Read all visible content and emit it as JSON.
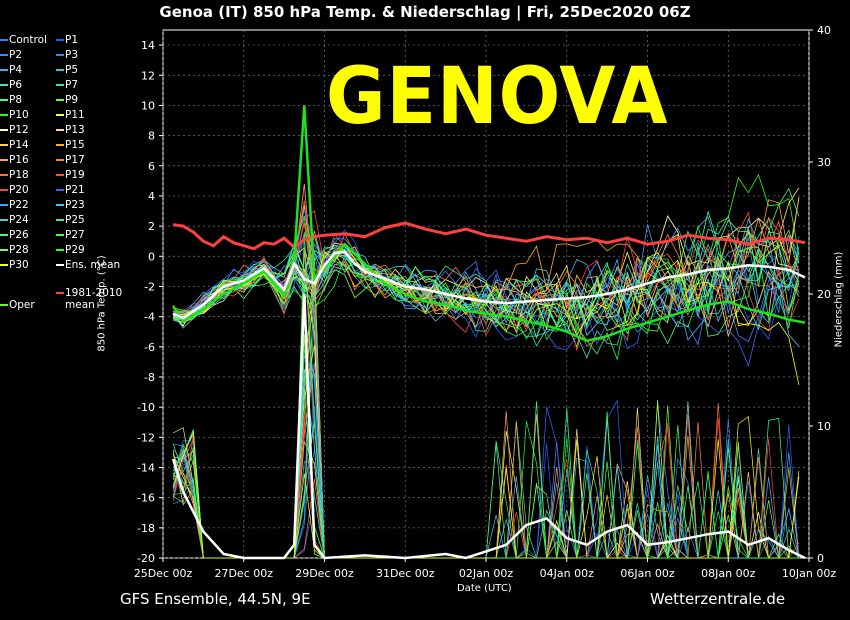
{
  "title": "Genoa  (IT)  850 hPa Temp. & Niederschlag | Fri, 25Dec2020 06Z",
  "overlay_label": "GENOVA",
  "footer_left": "GFS Ensemble, 44.5N, 9E",
  "footer_right": "Wetterzentrale.de",
  "legend": [
    {
      "label": "Control",
      "color": "#3f7fff"
    },
    {
      "label": "P1",
      "color": "#2060ff"
    },
    {
      "label": "P2",
      "color": "#2f8fff"
    },
    {
      "label": "P3",
      "color": "#4080ff"
    },
    {
      "label": "P4",
      "color": "#40b0ff"
    },
    {
      "label": "P5",
      "color": "#40c0e0"
    },
    {
      "label": "P6",
      "color": "#40e0c0"
    },
    {
      "label": "P7",
      "color": "#40e0a0"
    },
    {
      "label": "P8",
      "color": "#40ff80"
    },
    {
      "label": "P9",
      "color": "#60ff40"
    },
    {
      "label": "P10",
      "color": "#20ff20"
    },
    {
      "label": "P11",
      "color": "#ffff40"
    },
    {
      "label": "P12",
      "color": "#ffffa0"
    },
    {
      "label": "P13",
      "color": "#ffe080"
    },
    {
      "label": "P14",
      "color": "#ffd040"
    },
    {
      "label": "P15",
      "color": "#ffb020"
    },
    {
      "label": "P16",
      "color": "#ffa060"
    },
    {
      "label": "P17",
      "color": "#ff8040"
    },
    {
      "label": "P18",
      "color": "#ff7040"
    },
    {
      "label": "P19",
      "color": "#ff5030"
    },
    {
      "label": "P20",
      "color": "#ff4040"
    },
    {
      "label": "P21",
      "color": "#4060ff"
    },
    {
      "label": "P22",
      "color": "#40a0ff"
    },
    {
      "label": "P23",
      "color": "#40c0ff"
    },
    {
      "label": "P24",
      "color": "#40d0e0"
    },
    {
      "label": "P25",
      "color": "#40e0b0"
    },
    {
      "label": "P26",
      "color": "#40ff90"
    },
    {
      "label": "P27",
      "color": "#40ff60"
    },
    {
      "label": "P28",
      "color": "#80ff40"
    },
    {
      "label": "P29",
      "color": "#20ff40"
    },
    {
      "label": "P30",
      "color": "#ffff00"
    },
    {
      "label": "Ens. mean",
      "color": "#ffffff"
    },
    {
      "label": "Oper",
      "color": "#60ff20"
    },
    {
      "label": "1981-2010 mean",
      "color": "#ff4040"
    }
  ],
  "chart_data": {
    "type": "line",
    "xlabel": "Date (UTC)",
    "ylabel": "850 hPa Temp. (°C)",
    "y2label": "Niederschlag (mm)",
    "ylim": [
      -20,
      15
    ],
    "y2lim": [
      0,
      40
    ],
    "yticks": [
      -20,
      -18,
      -16,
      -14,
      -12,
      -10,
      -8,
      -6,
      -4,
      -2,
      0,
      2,
      4,
      6,
      8,
      10,
      12,
      14
    ],
    "y2ticks": [
      0,
      10,
      20,
      30,
      40
    ],
    "xticks": [
      "25Dec 00z",
      "27Dec 00z",
      "29Dec 00z",
      "31Dec 00z",
      "02Jan 00z",
      "04Jan 00z",
      "06Jan 00z",
      "08Jan 00z",
      "10Jan 00z"
    ],
    "x_days": [
      0,
      16
    ],
    "ens_mean_temp": [
      [
        0.25,
        -3.8
      ],
      [
        0.5,
        -4.1
      ],
      [
        1,
        -3.2
      ],
      [
        1.5,
        -2
      ],
      [
        2,
        -1.6
      ],
      [
        2.5,
        -0.8
      ],
      [
        3,
        -2.2
      ],
      [
        3.25,
        -0.5
      ],
      [
        3.5,
        -1.5
      ],
      [
        3.75,
        -1.8
      ],
      [
        4,
        -0.6
      ],
      [
        4.25,
        0.2
      ],
      [
        4.5,
        0.3
      ],
      [
        4.75,
        -0.5
      ],
      [
        5,
        -1
      ],
      [
        5.5,
        -1.5
      ],
      [
        6,
        -2
      ],
      [
        6.5,
        -2.2
      ],
      [
        7,
        -2.5
      ],
      [
        7.5,
        -2.8
      ],
      [
        8,
        -3
      ],
      [
        8.5,
        -3.1
      ],
      [
        9,
        -3
      ],
      [
        9.5,
        -2.9
      ],
      [
        10,
        -2.8
      ],
      [
        10.5,
        -2.7
      ],
      [
        11,
        -2.5
      ],
      [
        11.5,
        -2.2
      ],
      [
        12,
        -1.8
      ],
      [
        12.5,
        -1.4
      ],
      [
        13,
        -1.2
      ],
      [
        13.5,
        -0.9
      ],
      [
        14,
        -0.8
      ],
      [
        14.5,
        -0.6
      ],
      [
        15,
        -0.7
      ],
      [
        15.5,
        -0.9
      ],
      [
        15.9,
        -1.4
      ]
    ],
    "clim_mean_temp": [
      [
        0.25,
        2.1
      ],
      [
        0.5,
        2
      ],
      [
        0.75,
        1.6
      ],
      [
        1,
        1
      ],
      [
        1.25,
        0.7
      ],
      [
        1.5,
        1.3
      ],
      [
        1.75,
        0.9
      ],
      [
        2,
        0.7
      ],
      [
        2.25,
        0.5
      ],
      [
        2.5,
        0.9
      ],
      [
        2.75,
        0.8
      ],
      [
        3,
        1.2
      ],
      [
        3.25,
        0.6
      ],
      [
        3.5,
        1.1
      ],
      [
        3.75,
        1.3
      ],
      [
        4,
        1.4
      ],
      [
        4.5,
        1.5
      ],
      [
        5,
        1.3
      ],
      [
        5.5,
        1.9
      ],
      [
        6,
        2.2
      ],
      [
        6.5,
        1.8
      ],
      [
        7,
        1.5
      ],
      [
        7.5,
        1.8
      ],
      [
        8,
        1.4
      ],
      [
        8.5,
        1.2
      ],
      [
        9,
        1
      ],
      [
        9.5,
        1.3
      ],
      [
        10,
        1.1
      ],
      [
        10.5,
        1.2
      ],
      [
        11,
        0.9
      ],
      [
        11.5,
        1.2
      ],
      [
        12,
        0.8
      ],
      [
        12.5,
        1
      ],
      [
        13,
        1.4
      ],
      [
        13.5,
        1.2
      ],
      [
        14,
        1.1
      ],
      [
        14.5,
        0.8
      ],
      [
        15,
        1.2
      ],
      [
        15.5,
        1.1
      ],
      [
        15.9,
        0.9
      ]
    ],
    "oper_temp": [
      [
        0.25,
        -3.3
      ],
      [
        0.5,
        -4.3
      ],
      [
        1,
        -3.5
      ],
      [
        1.5,
        -2.5
      ],
      [
        2,
        -1.8
      ],
      [
        2.5,
        -1
      ],
      [
        3,
        -2.6
      ],
      [
        3.25,
        -0.2
      ],
      [
        3.5,
        10
      ],
      [
        3.75,
        -1.5
      ],
      [
        4,
        -0.8
      ],
      [
        4.5,
        0.8
      ],
      [
        5,
        -0.5
      ],
      [
        5.5,
        -1.8
      ],
      [
        6,
        -2.5
      ],
      [
        6.5,
        -3
      ],
      [
        7,
        -3.2
      ],
      [
        7.5,
        -3.6
      ],
      [
        8,
        -3.8
      ],
      [
        8.5,
        -4
      ],
      [
        9,
        -4.3
      ],
      [
        9.5,
        -4.6
      ],
      [
        10,
        -5
      ],
      [
        10.5,
        -5.6
      ],
      [
        11,
        -5.3
      ],
      [
        11.5,
        -4.8
      ],
      [
        12,
        -4.4
      ],
      [
        12.5,
        -4
      ],
      [
        13,
        -3.6
      ],
      [
        13.5,
        -3.2
      ],
      [
        14,
        -3
      ],
      [
        14.5,
        -3.5
      ],
      [
        15,
        -3.8
      ],
      [
        15.5,
        -4.2
      ],
      [
        15.9,
        -4.4
      ]
    ],
    "ens_mean_precip": [
      [
        0.25,
        7.5
      ],
      [
        0.5,
        5
      ],
      [
        1,
        2
      ],
      [
        1.5,
        0.3
      ],
      [
        2,
        0
      ],
      [
        3,
        0
      ],
      [
        3.25,
        1
      ],
      [
        3.5,
        20
      ],
      [
        3.75,
        1
      ],
      [
        4,
        0
      ],
      [
        5,
        0.2
      ],
      [
        6,
        0
      ],
      [
        7,
        0.3
      ],
      [
        7.5,
        0
      ],
      [
        8,
        0.5
      ],
      [
        8.5,
        1
      ],
      [
        9,
        2.5
      ],
      [
        9.5,
        3
      ],
      [
        10,
        1.5
      ],
      [
        10.5,
        1
      ],
      [
        11,
        2
      ],
      [
        11.5,
        2.5
      ],
      [
        12,
        1
      ],
      [
        12.5,
        1.2
      ],
      [
        13,
        1.5
      ],
      [
        13.5,
        1.8
      ],
      [
        14,
        2
      ],
      [
        14.5,
        1
      ],
      [
        15,
        1.5
      ],
      [
        15.5,
        0.6
      ],
      [
        15.9,
        0
      ]
    ]
  }
}
